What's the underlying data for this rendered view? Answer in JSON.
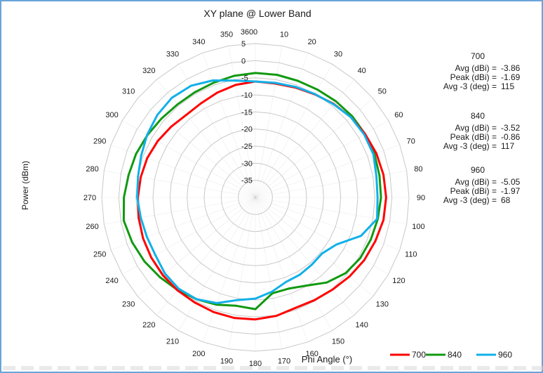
{
  "colors": {
    "s700": "#ff0000",
    "s840": "#119911",
    "s960": "#11b0e8",
    "grid": "#c8c8c8",
    "frame": "#6aa4d8"
  },
  "chart_data": {
    "type": "polar-line",
    "title": "XY plane @ Lower Band",
    "xlabel": "Phi  Angle (°)",
    "ylabel": "Power (dBm)",
    "angle_ticks": [
      "0",
      "10",
      "20",
      "30",
      "40",
      "50",
      "60",
      "70",
      "80",
      "90",
      "100",
      "110",
      "120",
      "130",
      "140",
      "150",
      "160",
      "170",
      "180",
      "190",
      "200",
      "210",
      "220",
      "230",
      "240",
      "250",
      "260",
      "270",
      "280",
      "290",
      "300",
      "310",
      "320",
      "330",
      "340",
      "350",
      "360"
    ],
    "radial_ticks": [
      "5",
      "0",
      "-5",
      "-10",
      "-15",
      "-20",
      "-25",
      "-30",
      "-35"
    ],
    "rlim": [
      -40,
      5
    ],
    "legend_position": "bottom-right",
    "series": [
      {
        "name": "700",
        "angles": [
          0,
          10,
          20,
          30,
          40,
          50,
          60,
          70,
          80,
          90,
          100,
          110,
          120,
          130,
          140,
          150,
          160,
          170,
          180,
          190,
          200,
          210,
          220,
          230,
          240,
          250,
          260,
          270,
          280,
          290,
          300,
          310,
          320,
          330,
          340,
          350
        ],
        "values": [
          -6.1,
          -6.2,
          -5.8,
          -5.2,
          -4.3,
          -3.5,
          -2.9,
          -2.3,
          -1.9,
          -1.69,
          -1.9,
          -2.6,
          -3.2,
          -4.0,
          -4.8,
          -5.3,
          -5.6,
          -4.8,
          -4.3,
          -4.2,
          -4.3,
          -4.5,
          -4.5,
          -4.6,
          -4.8,
          -5.0,
          -5.3,
          -5.6,
          -5.9,
          -6.3,
          -7.0,
          -7.8,
          -8.5,
          -8.2,
          -7.4,
          -6.6
        ],
        "stats": {
          "avg_label": "Avg (dBi) =",
          "avg": "-3.86",
          "peak_label": "Peak (dBi) =",
          "peak": "-1.69",
          "avg3_label": "Avg -3 (deg) =",
          "avg3": "115"
        }
      },
      {
        "name": "840",
        "angles": [
          0,
          10,
          20,
          30,
          40,
          50,
          60,
          70,
          80,
          90,
          100,
          110,
          120,
          130,
          140,
          150,
          160,
          170,
          180,
          190,
          200,
          210,
          220,
          230,
          240,
          250,
          260,
          270,
          280,
          290,
          300,
          310,
          320,
          330,
          340,
          350
        ],
        "values": [
          -3.6,
          -3.6,
          -3.7,
          -3.6,
          -3.3,
          -3.0,
          -2.9,
          -2.9,
          -3.1,
          -3.2,
          -3.6,
          -4.0,
          -4.5,
          -5.5,
          -7.5,
          -10.2,
          -11.6,
          -11.5,
          -7.3,
          -7.8,
          -6.6,
          -5.6,
          -4.6,
          -3.6,
          -2.5,
          -1.6,
          -0.86,
          -1.5,
          -2.3,
          -2.8,
          -3.5,
          -4.1,
          -4.5,
          -4.5,
          -4.3,
          -3.9
        ],
        "stats": {
          "avg_label": "Avg (dBi) =",
          "avg": "-3.52",
          "peak_label": "Peak (dBi) =",
          "peak": "-0.86",
          "avg3_label": "Avg -3 (deg) =",
          "avg3": "117"
        }
      },
      {
        "name": "960",
        "angles": [
          0,
          10,
          20,
          30,
          40,
          50,
          60,
          70,
          80,
          90,
          100,
          110,
          120,
          130,
          140,
          150,
          160,
          170,
          180,
          190,
          200,
          210,
          220,
          230,
          240,
          250,
          260,
          270,
          280,
          290,
          300,
          310,
          320,
          330,
          340,
          350
        ],
        "values": [
          -6.1,
          -6.0,
          -5.6,
          -5.1,
          -4.4,
          -3.5,
          -3.2,
          -3.2,
          -4.0,
          -4.2,
          -3.8,
          -7.1,
          -12.5,
          -14.5,
          -14.3,
          -13.9,
          -13.7,
          -12.0,
          -10.4,
          -9.5,
          -7.1,
          -5.6,
          -5.1,
          -5.4,
          -6.2,
          -6.2,
          -5.9,
          -5.4,
          -5.1,
          -4.4,
          -3.4,
          -2.5,
          -1.97,
          -2.3,
          -3.6,
          -5.3
        ],
        "stats": {
          "avg_label": "Avg (dBi) =",
          "avg": "-5.05",
          "peak_label": "Peak (dBi) =",
          "peak": "-1.97",
          "avg3_label": "Avg -3 (deg) =",
          "avg3": "68"
        }
      }
    ]
  }
}
